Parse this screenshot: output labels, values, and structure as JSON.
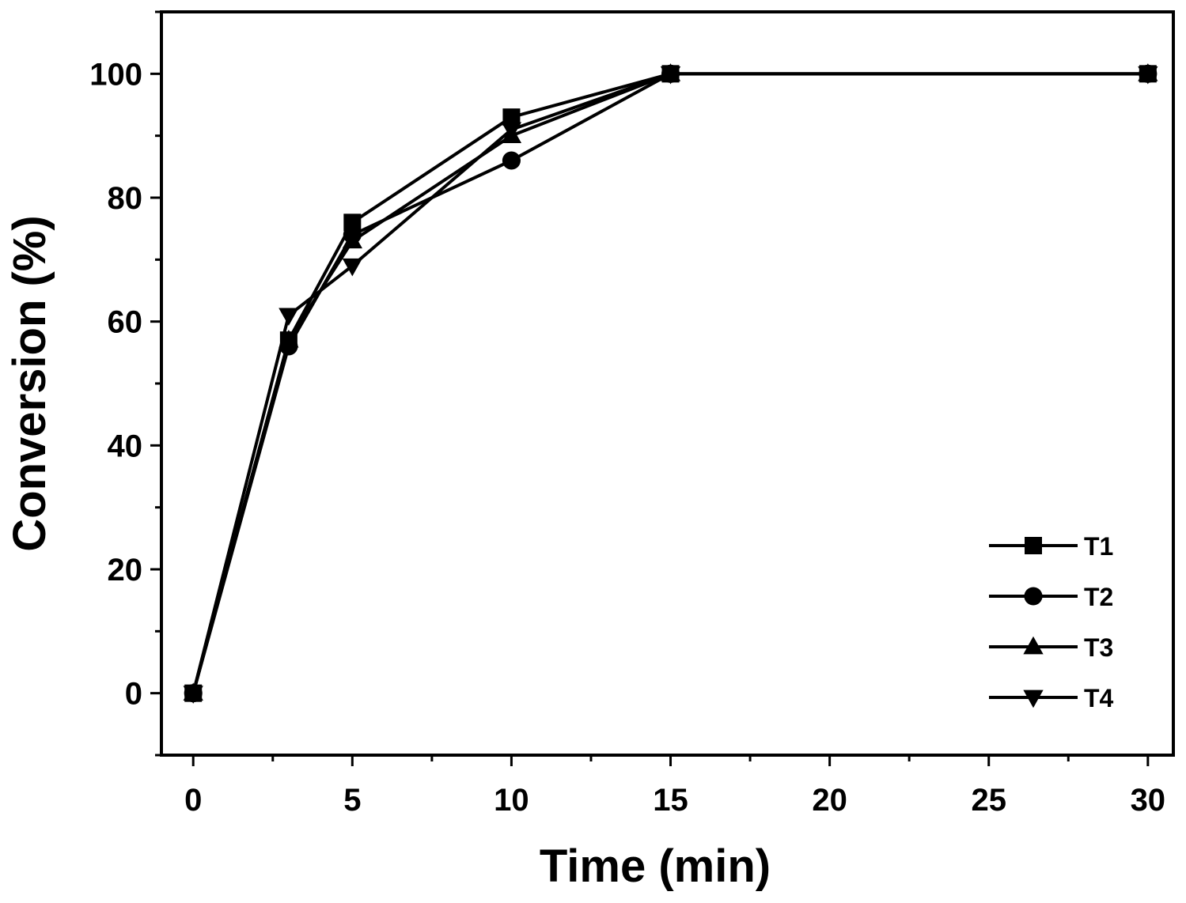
{
  "chart_data": {
    "type": "line",
    "xlabel": "Time (min)",
    "ylabel": "Conversion (%)",
    "x_ticks": [
      "0",
      "5",
      "10",
      "15",
      "20",
      "25",
      "30"
    ],
    "y_ticks": [
      "0",
      "20",
      "40",
      "60",
      "80",
      "100"
    ],
    "xlim": [
      -1,
      30.8
    ],
    "ylim": [
      -10,
      110
    ],
    "grid": false,
    "legend_position": "bottom-right",
    "x": [
      0,
      3,
      5,
      10,
      15,
      30
    ],
    "series": [
      {
        "name": "T1",
        "marker": "square",
        "values": [
          0,
          57,
          76,
          93,
          100,
          100
        ]
      },
      {
        "name": "T2",
        "marker": "circle",
        "values": [
          0,
          56,
          74,
          86,
          100,
          100
        ]
      },
      {
        "name": "T3",
        "marker": "triangle-up",
        "values": [
          0,
          57,
          73,
          90,
          100,
          100
        ]
      },
      {
        "name": "T4",
        "marker": "triangle-down",
        "values": [
          0,
          61,
          69,
          91,
          100,
          100
        ]
      }
    ],
    "colors": {
      "line": "#000000",
      "marker": "#000000"
    }
  }
}
